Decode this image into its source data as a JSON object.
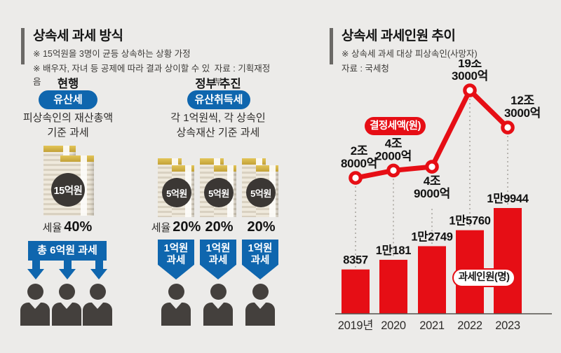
{
  "left_panel": {
    "title": "상속세 과세 방식",
    "notes": [
      "※ 15억원을 3명이 균등 상속하는 상황 가정",
      "※ 배우자, 자녀 등 공제에 따라 결과 상이할 수 있음"
    ],
    "source": "자료 : 기획재정부",
    "current": {
      "label": "현행",
      "badge": "유산세",
      "desc_line1": "피상속인의 재산총액",
      "desc_line2": "기준 과세",
      "stack_amount": "15억원",
      "rate": {
        "prefix": "세율",
        "value": "40%"
      },
      "tax_box": "총 6억원 과세"
    },
    "proposed": {
      "label": "정부 추진",
      "badge": "유산취득세",
      "desc_line1": "각 1억원씩, 각 상속인",
      "desc_line2": "상속재산 기준 과세",
      "stack_amount": "5억원",
      "rates": [
        {
          "prefix": "세율",
          "value": "20%"
        },
        {
          "prefix": "",
          "value": "20%"
        },
        {
          "prefix": "",
          "value": "20%"
        }
      ],
      "arrow_line1": "1억원",
      "arrow_line2": "과세"
    }
  },
  "right_panel": {
    "title": "상속세 과세인원 추이",
    "note": "※ 상속세 과세 대상 피상속인(사망자)",
    "source": "자료 : 국세청",
    "line_legend": "결정세액(원)",
    "bar_legend": "과세인원(명)"
  },
  "chart_data": {
    "type": "bar",
    "title": "상속세 과세인원 추이",
    "categories": [
      "2019년",
      "2020",
      "2021",
      "2022",
      "2023"
    ],
    "series": [
      {
        "name": "과세인원(명)",
        "type": "bar",
        "values": [
          8357,
          10181,
          12749,
          15760,
          19944
        ],
        "value_labels": [
          "8357",
          "1만181",
          "1만2749",
          "1만5760",
          "1만9944"
        ],
        "color": "#E60E15"
      },
      {
        "name": "결정세액(원)",
        "type": "line",
        "unit": "trillion KRW (조원)",
        "values": [
          2.8,
          4.2,
          4.9,
          19.3,
          12.3
        ],
        "value_labels": [
          [
            "2조",
            "8000억"
          ],
          [
            "4조",
            "2000억"
          ],
          [
            "4조",
            "9000억"
          ],
          [
            "19조",
            "3000억"
          ],
          [
            "12조",
            "3000억"
          ]
        ],
        "color": "#E60E15",
        "marker": "open-circle"
      }
    ],
    "bar_ylim": [
      0,
      19944
    ],
    "grid": false,
    "legend_position": "inside"
  },
  "colors": {
    "background": "#ECEBE9",
    "accent_blue": "#0F66AE",
    "accent_red": "#E60E15",
    "dark_text": "#141414",
    "person_gray": "#44403D",
    "coin_circle": "#3B3734"
  }
}
